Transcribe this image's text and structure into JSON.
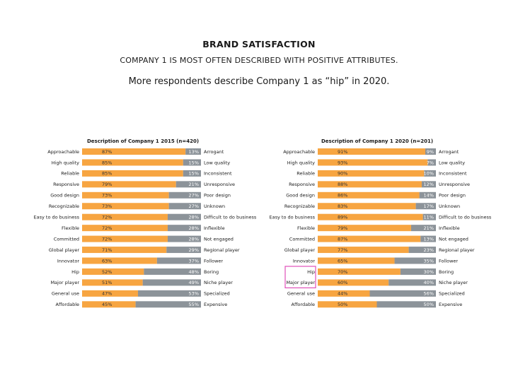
{
  "header": {
    "title": "BRAND SATISFACTION",
    "subtitle": "COMPANY 1 IS MOST OFTEN DESCRIBED WITH POSITIVE ATTRIBUTES.",
    "headline": "More respondents describe Company 1 as “hip” in 2020."
  },
  "colors": {
    "positive": "#F7A541",
    "negative": "#8C9399",
    "highlight": "#E04FB9"
  },
  "chart_data": [
    {
      "type": "bar",
      "stacked": true,
      "orientation": "horizontal",
      "title": "Description of Company 1 2015 (n=420)",
      "xlim": [
        0,
        100
      ],
      "grid": false,
      "series": [
        {
          "labels": [
            "Approachable",
            "High quality",
            "Reliable",
            "Responsive",
            "Good design",
            "Recognizable",
            "Easy to do business",
            "Flexible",
            "Committed",
            "Global player",
            "Innovator",
            "Hip",
            "Major player",
            "General use",
            "Affordable"
          ],
          "values": [
            87,
            85,
            85,
            79,
            73,
            73,
            72,
            72,
            72,
            71,
            63,
            52,
            51,
            47,
            45
          ]
        },
        {
          "labels": [
            "Arrogant",
            "Low quality",
            "Inconsistent",
            "Unresponsive",
            "Poor design",
            "Unknown",
            "Difficult to do business",
            "Inflexible",
            "Not engaged",
            "Regional player",
            "Follower",
            "Boring",
            "Niche player",
            "Specialized",
            "Expensive"
          ],
          "values": [
            13,
            15,
            15,
            21,
            27,
            27,
            28,
            28,
            28,
            29,
            37,
            48,
            49,
            53,
            55
          ]
        }
      ],
      "highlighted_rows": []
    },
    {
      "type": "bar",
      "stacked": true,
      "orientation": "horizontal",
      "title": "Description of Company 1 2020 (n=201)",
      "xlim": [
        0,
        100
      ],
      "grid": false,
      "series": [
        {
          "labels": [
            "Approachable",
            "High quality",
            "Reliable",
            "Responsive",
            "Good design",
            "Recognizable",
            "Easy to do business",
            "Flexible",
            "Committed",
            "Global player",
            "Innovator",
            "Hip",
            "Major player",
            "General use",
            "Affordable"
          ],
          "values": [
            91,
            93,
            90,
            88,
            86,
            83,
            89,
            79,
            87,
            77,
            65,
            70,
            60,
            44,
            50
          ]
        },
        {
          "labels": [
            "Arrogant",
            "Low quality",
            "Inconsistent",
            "Unresponsive",
            "Poor design",
            "Unknown",
            "Difficult to do business",
            "Inflexible",
            "Not engaged",
            "Regional player",
            "Follower",
            "Boring",
            "Niche player",
            "Specialized",
            "Expensive"
          ],
          "values": [
            9,
            7,
            10,
            12,
            14,
            17,
            11,
            21,
            13,
            23,
            35,
            30,
            40,
            56,
            50
          ]
        }
      ],
      "highlighted_rows": [
        "Hip",
        "Major player"
      ]
    }
  ]
}
